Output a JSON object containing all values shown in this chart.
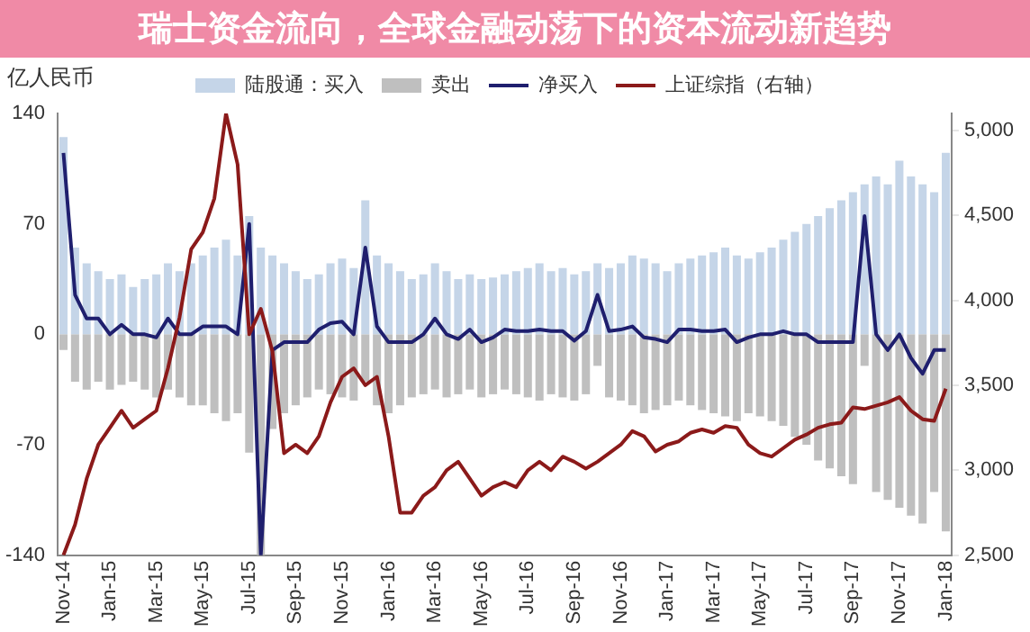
{
  "chart_data": {
    "type": "bar",
    "title": "瑞士资金流向，全球金融动荡下的资本流动新趋势",
    "ylabel": "亿人民币",
    "categories": [
      "Nov-14",
      null,
      null,
      null,
      "Jan-15",
      null,
      null,
      null,
      "Mar-15",
      null,
      null,
      null,
      "May-15",
      null,
      null,
      null,
      "Jul-15",
      null,
      null,
      null,
      "Sep-15",
      null,
      null,
      null,
      "Nov-15",
      null,
      null,
      null,
      "Jan-16",
      null,
      null,
      null,
      "Mar-16",
      null,
      null,
      null,
      "May-16",
      null,
      null,
      null,
      "Jul-16",
      null,
      null,
      null,
      "Sep-16",
      null,
      null,
      null,
      "Nov-16",
      null,
      null,
      null,
      "Jan-17",
      null,
      null,
      null,
      "Mar-17",
      null,
      null,
      null,
      "May-17",
      null,
      null,
      null,
      "Jul-17",
      null,
      null,
      null,
      "Sep-17",
      null,
      null,
      null,
      "Nov-17",
      null,
      null,
      null,
      "Jan-18"
    ],
    "series": [
      {
        "name": "陆股通：买入",
        "color": "#c5d5e8",
        "values": [
          125,
          55,
          45,
          40,
          35,
          38,
          30,
          35,
          38,
          45,
          40,
          45,
          50,
          55,
          60,
          50,
          75,
          55,
          50,
          45,
          40,
          35,
          38,
          45,
          48,
          42,
          85,
          50,
          45,
          40,
          35,
          38,
          45,
          40,
          35,
          38,
          35,
          36,
          38,
          40,
          42,
          45,
          40,
          42,
          38,
          40,
          45,
          42,
          45,
          50,
          48,
          45,
          40,
          45,
          48,
          50,
          52,
          55,
          50,
          48,
          52,
          55,
          60,
          65,
          70,
          75,
          80,
          85,
          90,
          95,
          100,
          95,
          110,
          100,
          95,
          90,
          115
        ]
      },
      {
        "name": "卖出",
        "color": "#bfbfbf",
        "values": [
          -10,
          -30,
          -35,
          -30,
          -35,
          -32,
          -30,
          -35,
          -40,
          -35,
          -40,
          -45,
          -45,
          -50,
          -55,
          -50,
          -75,
          -140,
          -60,
          -50,
          -45,
          -40,
          -35,
          -38,
          -40,
          -42,
          -30,
          -45,
          -50,
          -45,
          -40,
          -38,
          -35,
          -40,
          -38,
          -35,
          -40,
          -38,
          -35,
          -38,
          -40,
          -42,
          -38,
          -40,
          -42,
          -38,
          -20,
          -40,
          -42,
          -45,
          -50,
          -48,
          -45,
          -42,
          -45,
          -48,
          -50,
          -52,
          -55,
          -50,
          -52,
          -55,
          -58,
          -65,
          -70,
          -80,
          -85,
          -90,
          -95,
          -20,
          -100,
          -105,
          -110,
          -115,
          -120,
          -100,
          -125
        ]
      },
      {
        "name": "净买入",
        "type": "line",
        "color": "#1f1f6e",
        "values": [
          115,
          25,
          10,
          10,
          0,
          6,
          0,
          0,
          -2,
          10,
          0,
          0,
          5,
          5,
          5,
          0,
          70,
          -140,
          -10,
          -5,
          -5,
          -5,
          3,
          7,
          8,
          0,
          55,
          5,
          -5,
          -5,
          -5,
          0,
          10,
          0,
          -3,
          3,
          -5,
          -2,
          3,
          2,
          2,
          3,
          2,
          2,
          -4,
          2,
          25,
          2,
          3,
          5,
          -2,
          -3,
          -5,
          3,
          3,
          2,
          2,
          3,
          -5,
          -2,
          0,
          0,
          2,
          0,
          0,
          -5,
          -5,
          -5,
          -5,
          75,
          0,
          -10,
          0,
          -15,
          -25,
          -10,
          -10
        ]
      },
      {
        "name": "上证综指（右轴）",
        "type": "line",
        "axis": "y2",
        "color": "#8b1a1a",
        "values": [
          2500,
          2680,
          2950,
          3150,
          3250,
          3350,
          3250,
          3300,
          3350,
          3600,
          3900,
          4300,
          4400,
          4600,
          5100,
          4800,
          3800,
          3950,
          3700,
          3100,
          3150,
          3100,
          3200,
          3400,
          3550,
          3600,
          3500,
          3550,
          3200,
          2750,
          2750,
          2850,
          2900,
          3000,
          3050,
          2950,
          2850,
          2900,
          2930,
          2900,
          3000,
          3050,
          3000,
          3080,
          3050,
          3010,
          3050,
          3100,
          3150,
          3230,
          3200,
          3110,
          3150,
          3170,
          3220,
          3240,
          3220,
          3260,
          3250,
          3150,
          3100,
          3080,
          3130,
          3180,
          3210,
          3250,
          3270,
          3280,
          3370,
          3360,
          3380,
          3400,
          3430,
          3350,
          3300,
          3290,
          3480
        ]
      }
    ],
    "ylim": [
      -140,
      140
    ],
    "yticks": [
      -140,
      -70,
      0,
      70,
      140
    ],
    "y2lim": [
      2500,
      5100
    ],
    "y2ticks": [
      {
        "value": 2500,
        "label": "2,500"
      },
      {
        "value": 3000,
        "label": "3,000"
      },
      {
        "value": 3500,
        "label": "3,500"
      },
      {
        "value": 4000,
        "label": "4,000"
      },
      {
        "value": 4500,
        "label": "4,500"
      },
      {
        "value": 5000,
        "label": "5,000"
      }
    ],
    "stacked": true,
    "grid": false,
    "legend": "top"
  }
}
